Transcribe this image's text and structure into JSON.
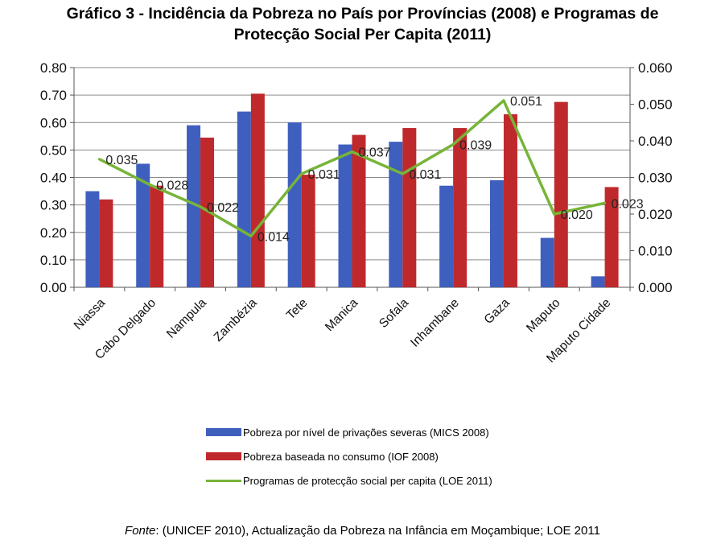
{
  "title": {
    "line1": "Gráfico 3 - Incidência da Pobreza no País por Províncias (2008) e Programas de",
    "line2": "Protecção Social Per Capita (2011)"
  },
  "chart_data": {
    "type": "bar",
    "categories": [
      "Niassa",
      "Cabo Delgado",
      "Nampula",
      "Zambézia",
      "Tete",
      "Manica",
      "Sofala",
      "Inhambane",
      "Gaza",
      "Maputo",
      "Maputo Cidade"
    ],
    "series": [
      {
        "name": "Pobreza por nível de privações severas (MICS 2008)",
        "kind": "bar",
        "axis": "left",
        "color": "#3f5fbf",
        "values": [
          0.35,
          0.45,
          0.59,
          0.64,
          0.6,
          0.52,
          0.53,
          0.37,
          0.39,
          0.18,
          0.04
        ]
      },
      {
        "name": "Pobreza baseada no consumo (IOF 2008)",
        "kind": "bar",
        "axis": "left",
        "color": "#c0292b",
        "values": [
          0.32,
          0.37,
          0.545,
          0.705,
          0.41,
          0.555,
          0.58,
          0.58,
          0.63,
          0.675,
          0.365
        ]
      },
      {
        "name": "Programas de protecção social per capita (LOE 2011)",
        "kind": "line",
        "axis": "right",
        "color": "#77b439",
        "values": [
          0.035,
          0.028,
          0.022,
          0.014,
          0.031,
          0.037,
          0.031,
          0.039,
          0.051,
          0.02,
          0.023
        ],
        "labels": [
          "0.035",
          "0.028",
          "0.022",
          "0.014",
          "0.031",
          "0.037",
          "0.031",
          "0.039",
          "0.051",
          "0.020",
          "0.023"
        ]
      }
    ],
    "y_left": {
      "min": 0,
      "max": 0.8,
      "ticks": [
        "0.00",
        "0.10",
        "0.20",
        "0.30",
        "0.40",
        "0.50",
        "0.60",
        "0.70",
        "0.80"
      ]
    },
    "y_right": {
      "min": 0,
      "max": 0.06,
      "ticks": [
        "0.000",
        "0.010",
        "0.020",
        "0.030",
        "0.040",
        "0.050",
        "0.060"
      ]
    },
    "grid": true,
    "legend_position": "bottom"
  },
  "legend": {
    "items": [
      {
        "label": "Pobreza por nível de privações severas (MICS 2008)",
        "color": "#3f5fbf"
      },
      {
        "label": "Pobreza baseada no consumo (IOF 2008)",
        "color": "#c0292b"
      },
      {
        "label": "Programas de protecção social per capita (LOE 2011)",
        "color": "#77b439"
      }
    ]
  },
  "source": {
    "prefix": "Fonte",
    "text": ": (UNICEF 2010), Actualização da Pobreza na Infância em Moçambique; LOE 2011"
  }
}
